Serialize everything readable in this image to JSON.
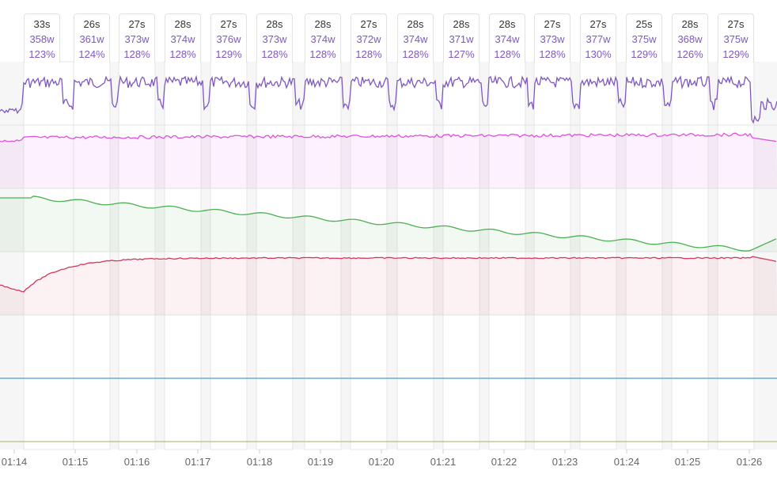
{
  "chart_data": {
    "type": "line",
    "x_tick_labels": [
      "01:14",
      "01:15",
      "01:16",
      "01:17",
      "01:18",
      "01:19",
      "01:20",
      "01:21",
      "01:22",
      "01:23",
      "01:24",
      "01:25",
      "01:26"
    ],
    "intervals": [
      {
        "duration": "33s",
        "power": "358w",
        "percent": "123%"
      },
      {
        "duration": "26s",
        "power": "361w",
        "percent": "124%"
      },
      {
        "duration": "27s",
        "power": "373w",
        "percent": "128%"
      },
      {
        "duration": "28s",
        "power": "374w",
        "percent": "128%"
      },
      {
        "duration": "27s",
        "power": "376w",
        "percent": "129%"
      },
      {
        "duration": "28s",
        "power": "373w",
        "percent": "128%"
      },
      {
        "duration": "28s",
        "power": "374w",
        "percent": "128%"
      },
      {
        "duration": "27s",
        "power": "372w",
        "percent": "128%"
      },
      {
        "duration": "28s",
        "power": "374w",
        "percent": "128%"
      },
      {
        "duration": "28s",
        "power": "371w",
        "percent": "127%"
      },
      {
        "duration": "28s",
        "power": "374w",
        "percent": "128%"
      },
      {
        "duration": "27s",
        "power": "373w",
        "percent": "128%"
      },
      {
        "duration": "27s",
        "power": "377w",
        "percent": "130%"
      },
      {
        "duration": "25s",
        "power": "375w",
        "percent": "129%"
      },
      {
        "duration": "28s",
        "power": "368w",
        "percent": "126%"
      },
      {
        "duration": "27s",
        "power": "375w",
        "percent": "129%"
      }
    ],
    "series": [
      {
        "color": "#7e57c2",
        "shape": "square-wave"
      },
      {
        "color": "#e04fe0",
        "shape": "flat-high"
      },
      {
        "color": "#4caf50",
        "shape": "declining"
      },
      {
        "color": "#d6375a",
        "shape": "rising-plateau"
      },
      {
        "color": "#4a9fd8",
        "shape": "flat"
      },
      {
        "color": "#b8c07a",
        "shape": "flat"
      }
    ],
    "grid": true
  }
}
